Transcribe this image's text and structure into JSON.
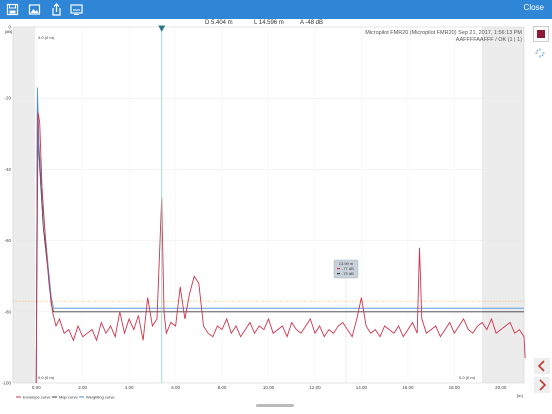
{
  "toolbar": {
    "icons": [
      "save-icon",
      "image-icon",
      "share-icon",
      "screen-icon"
    ],
    "close_label": "Close",
    "bg_color": "#2f86d6"
  },
  "readouts": {
    "d": "D 5.404 m",
    "l": "L 14.596 m",
    "a": "A -48 dB"
  },
  "device": {
    "line1": "Micropilot FMR20 (Micropilot FMR20) Sep 21, 2017, 1:56:13 PM",
    "line2": "AAFFFFAAFFF / OK (1 | 1)"
  },
  "corner_labels": {
    "top_left": "0.0 (0 m)",
    "bottom_left": "0.0 (0 m)",
    "bottom_right": "0.0 (0 m)"
  },
  "tooltip": {
    "title": "13.99 m",
    "row1": "-77 dB",
    "row2": "-79 dB"
  },
  "legend": [
    {
      "label": "Envelope curve",
      "color": "#d0344c"
    },
    {
      "label": "Map curve",
      "color": "#3b3b3b"
    },
    {
      "label": "Weighting curve",
      "color": "#4a8fd6"
    }
  ],
  "side": {
    "color_swatch": "#8b1a38",
    "spinner_icon": "spinner-icon",
    "left_arrow_icon": "chevron-left-icon",
    "right_arrow_icon": "chevron-right-icon",
    "arrow_color": "#c0392b"
  },
  "chart_data": {
    "type": "line",
    "ylabel": "[dB]",
    "xlabel": "[m]",
    "xlim": [
      -1,
      21
    ],
    "ylim": [
      -100,
      0
    ],
    "xticks": [
      "0.00",
      "2.00",
      "4.00",
      "6.00",
      "8.00",
      "10.00",
      "12.00",
      "14.00",
      "16.00",
      "18.00",
      "20.00"
    ],
    "yticks": [
      "0",
      "-20",
      "-40",
      "-60",
      "-80",
      "-100"
    ],
    "marker_x": 5.404,
    "threshold_y": -77,
    "series": [
      {
        "name": "Envelope curve",
        "color": "#d0344c",
        "x": [
          0,
          0.08,
          0.15,
          0.25,
          0.4,
          0.55,
          0.7,
          0.85,
          1.0,
          1.2,
          1.4,
          1.6,
          1.8,
          2.0,
          2.2,
          2.4,
          2.6,
          2.8,
          3.0,
          3.2,
          3.4,
          3.6,
          3.8,
          4.0,
          4.2,
          4.4,
          4.6,
          4.8,
          5.0,
          5.2,
          5.4,
          5.5,
          5.6,
          5.8,
          6.0,
          6.2,
          6.4,
          6.6,
          6.8,
          7.0,
          7.2,
          7.4,
          7.6,
          7.8,
          8.0,
          8.2,
          8.4,
          8.6,
          8.8,
          9.0,
          9.2,
          9.4,
          9.6,
          9.8,
          10.0,
          10.2,
          10.4,
          10.6,
          10.8,
          11.0,
          11.2,
          11.4,
          11.6,
          11.8,
          12.0,
          12.2,
          12.4,
          12.6,
          12.8,
          13.0,
          13.2,
          13.4,
          13.6,
          13.8,
          14.0,
          14.2,
          14.4,
          14.6,
          14.8,
          15.0,
          15.2,
          15.4,
          15.6,
          15.8,
          16.0,
          16.2,
          16.4,
          16.5,
          16.6,
          16.8,
          17.0,
          17.2,
          17.4,
          17.6,
          17.8,
          18.0,
          18.2,
          18.4,
          18.6,
          18.8,
          19.0,
          19.2,
          19.4,
          19.6,
          19.8,
          20.0,
          20.2,
          20.4,
          20.6,
          20.8,
          21.0,
          21.05
        ],
        "y": [
          -100,
          -24,
          -27,
          -45,
          -60,
          -72,
          -80,
          -84,
          -82,
          -86,
          -85,
          -88,
          -84,
          -87,
          -86,
          -85,
          -88,
          -83,
          -86,
          -84,
          -87,
          -80,
          -86,
          -82,
          -85,
          -81,
          -88,
          -76,
          -84,
          -82,
          -48,
          -80,
          -86,
          -83,
          -84,
          -73,
          -82,
          -75,
          -70,
          -72,
          -84,
          -86,
          -87,
          -84,
          -85,
          -82,
          -86,
          -84,
          -87,
          -85,
          -83,
          -86,
          -84,
          -85,
          -82,
          -86,
          -85,
          -84,
          -87,
          -83,
          -85,
          -86,
          -84,
          -82,
          -86,
          -84,
          -87,
          -85,
          -86,
          -84,
          -83,
          -85,
          -87,
          -82,
          -76,
          -84,
          -86,
          -85,
          -87,
          -84,
          -85,
          -86,
          -84,
          -87,
          -85,
          -83,
          -86,
          -62,
          -82,
          -86,
          -85,
          -84,
          -87,
          -85,
          -83,
          -86,
          -84,
          -82,
          -85,
          -86,
          -84,
          -83,
          -85,
          -82,
          -86,
          -85,
          -84,
          -83,
          -86,
          -85,
          -87,
          -93
        ]
      },
      {
        "name": "Map curve",
        "color": "#3b3b3b",
        "x": [
          0,
          0.05,
          0.12,
          0.3,
          0.5,
          0.65,
          0.75,
          21
        ],
        "y": [
          -100,
          -20,
          -36,
          -56,
          -68,
          -78,
          -80,
          -80
        ]
      },
      {
        "name": "Weighting curve",
        "color": "#4a8fd6",
        "x": [
          0,
          0.05,
          0.12,
          0.3,
          0.5,
          0.65,
          0.75,
          21
        ],
        "y": [
          -100,
          -17,
          -33,
          -52,
          -66,
          -76,
          -79,
          -79
        ]
      }
    ]
  }
}
